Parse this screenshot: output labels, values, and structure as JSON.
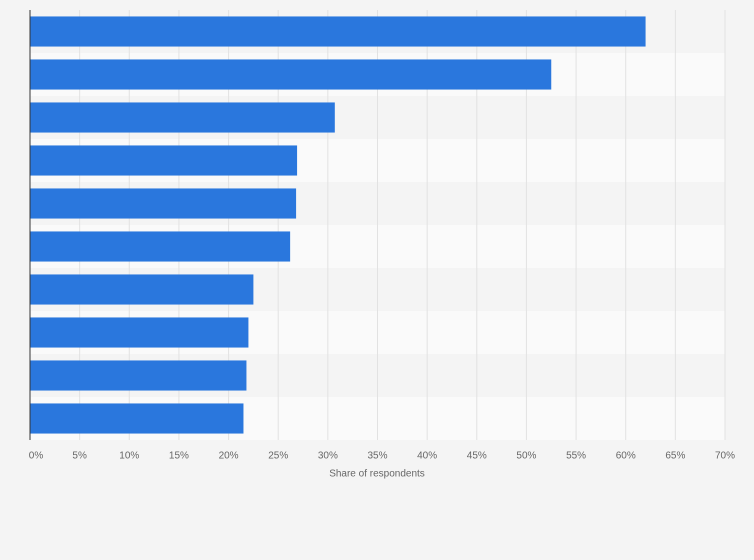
{
  "chart_data": {
    "type": "bar",
    "orientation": "horizontal",
    "x_label": "Share of respondents",
    "categories": [
      null,
      null,
      null,
      null,
      null,
      null,
      null,
      null,
      null,
      null
    ],
    "values": [
      62,
      52.5,
      30.7,
      26.9,
      26.8,
      26.2,
      22.5,
      22,
      21.8,
      21.5
    ],
    "color": "#2a77dd",
    "xlim": [
      0,
      70
    ],
    "xticks": [
      {
        "value": 0,
        "label": "0%"
      },
      {
        "value": 5,
        "label": "5%"
      },
      {
        "value": 10,
        "label": "10%"
      },
      {
        "value": 15,
        "label": "15%"
      },
      {
        "value": 20,
        "label": "20%"
      },
      {
        "value": 25,
        "label": "25%"
      },
      {
        "value": 30,
        "label": "30%"
      },
      {
        "value": 35,
        "label": "35%"
      },
      {
        "value": 40,
        "label": "40%"
      },
      {
        "value": 45,
        "label": "45%"
      },
      {
        "value": 50,
        "label": "50%"
      },
      {
        "value": 55,
        "label": "55%"
      },
      {
        "value": 60,
        "label": "60%"
      },
      {
        "value": 65,
        "label": "65%"
      },
      {
        "value": 70,
        "label": "70%"
      }
    ],
    "grid": true
  }
}
